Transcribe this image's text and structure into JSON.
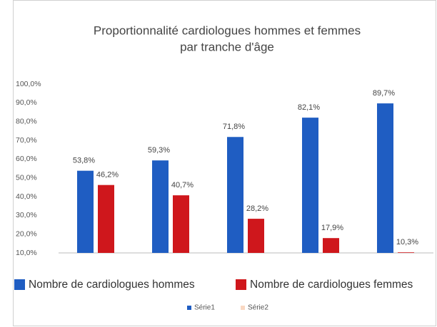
{
  "chart_data": {
    "type": "bar",
    "title": [
      "Proportionnalité cardiologues hommes et femmes",
      "par tranche d'âge"
    ],
    "categories": [
      null,
      null,
      null,
      null,
      null
    ],
    "series": [
      {
        "name": "Série1",
        "color": "#1f5dc2",
        "legend_color": "#1f5dc2",
        "values": [
          53.8,
          59.3,
          71.8,
          82.1,
          89.7
        ],
        "value_labels": [
          "53,8%",
          "59,3%",
          "71,8%",
          "82,1%",
          "89,7%"
        ]
      },
      {
        "name": "Série2",
        "color": "#cf171c",
        "legend_color": "#f9d8c2",
        "values": [
          46.2,
          40.7,
          28.2,
          17.9,
          10.3
        ],
        "value_labels": [
          "46,2%",
          "40,7%",
          "28,2%",
          "17,9%",
          "10,3%"
        ]
      }
    ],
    "legend_items": [
      {
        "label": "Nombre de cardiologues hommes",
        "color": "#1f5dc2"
      },
      {
        "label": "Nombre de cardiologues femmes",
        "color": "#cf171c"
      }
    ],
    "ylim": [
      10,
      100
    ],
    "yticks": [
      {
        "value": 10,
        "label": "10,0%"
      },
      {
        "value": 20,
        "label": "20,0%"
      },
      {
        "value": 30,
        "label": "30,0%"
      },
      {
        "value": 40,
        "label": "40,0%"
      },
      {
        "value": 50,
        "label": "50,0%"
      },
      {
        "value": 60,
        "label": "60,0%"
      },
      {
        "value": 70,
        "label": "70,0%"
      },
      {
        "value": 80,
        "label": "80,0%"
      },
      {
        "value": 90,
        "label": "90,0%"
      },
      {
        "value": 100,
        "label": "100,0%"
      }
    ],
    "grid": false
  }
}
